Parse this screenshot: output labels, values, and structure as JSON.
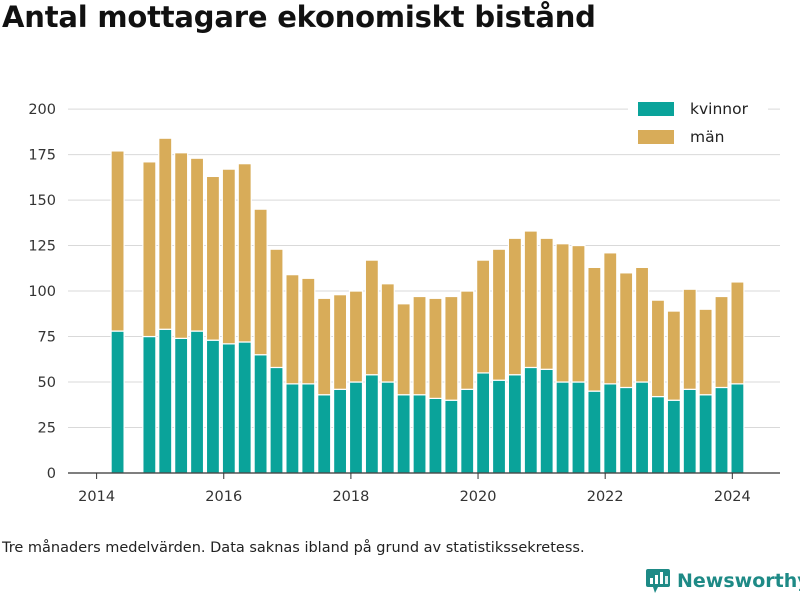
{
  "title": "Antal mottagare ekonomiskt bistånd",
  "note": "Tre månaders medelvärden. Data saknas ibland på grund av statistikssekretess.",
  "brand": {
    "name": "Newsworthy",
    "icon": "newsworthy-logo-icon"
  },
  "colors": {
    "kvinnor": "#0aa39a",
    "man": "#d8ac59",
    "grid": "#d9d9d9"
  },
  "chart_data": {
    "type": "bar",
    "stacked": true,
    "x": [
      2014.33,
      2014.83,
      2015.08,
      2015.33,
      2015.58,
      2015.83,
      2016.08,
      2016.33,
      2016.58,
      2016.83,
      2017.08,
      2017.33,
      2017.58,
      2017.83,
      2018.08,
      2018.33,
      2018.58,
      2018.83,
      2019.08,
      2019.33,
      2019.58,
      2019.83,
      2020.08,
      2020.33,
      2020.58,
      2020.83,
      2021.08,
      2021.33,
      2021.58,
      2021.83,
      2022.08,
      2022.33,
      2022.58,
      2022.83,
      2023.08,
      2023.33,
      2023.58,
      2023.83,
      2024.08
    ],
    "series": [
      {
        "name": "kvinnor",
        "values": [
          78,
          75,
          79,
          74,
          78,
          73,
          71,
          72,
          65,
          58,
          49,
          49,
          43,
          46,
          50,
          54,
          50,
          43,
          43,
          41,
          40,
          46,
          55,
          51,
          54,
          58,
          57,
          50,
          50,
          45,
          49,
          47,
          50,
          42,
          40,
          46,
          43,
          47,
          49
        ]
      },
      {
        "name": "män",
        "values": [
          99,
          96,
          105,
          102,
          95,
          90,
          96,
          98,
          80,
          65,
          60,
          58,
          53,
          52,
          50,
          63,
          54,
          50,
          54,
          55,
          57,
          54,
          62,
          72,
          75,
          75,
          72,
          76,
          75,
          68,
          72,
          63,
          63,
          53,
          49,
          55,
          47,
          50,
          56
        ]
      }
    ],
    "yticks": [
      0,
      25,
      50,
      75,
      100,
      125,
      150,
      175,
      200
    ],
    "xticks": [
      2014,
      2016,
      2018,
      2020,
      2022,
      2024
    ],
    "xlim": [
      2013.55,
      2024.75
    ],
    "ylim": [
      0,
      205
    ],
    "grid": true,
    "legend_position": "top-right"
  }
}
